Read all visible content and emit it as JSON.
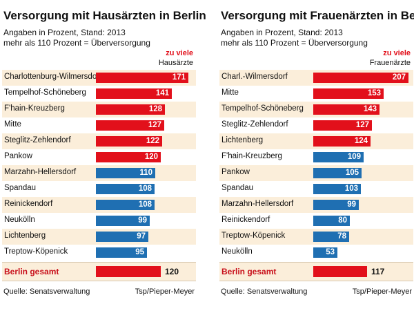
{
  "chart_data": [
    {
      "type": "bar",
      "orientation": "horizontal",
      "title": "Versorgung mit Hausärzten in Berlin",
      "subtitle_lines": [
        "Angaben in Prozent, Stand: 2013",
        "mehr als 110 Prozent = Überversorgung"
      ],
      "legend_label": "zu viele",
      "column_label": "Hausärzte",
      "threshold": 110,
      "xlim": [
        0,
        180
      ],
      "colors": {
        "over": "#e2101b",
        "under": "#1f6fb2",
        "total": "#e2101b"
      },
      "categories": [
        "Charlottenburg-Wilmersdorf",
        "Tempelhof-Schöneberg",
        "F'hain-Kreuzberg",
        "Mitte",
        "Steglitz-Zehlendorf",
        "Pankow",
        "Marzahn-Hellersdorf",
        "Spandau",
        "Reinickendorf",
        "Neukölln",
        "Lichtenberg",
        "Treptow-Köpenick"
      ],
      "values": [
        171,
        141,
        128,
        127,
        122,
        120,
        110,
        108,
        108,
        99,
        97,
        95
      ],
      "total_label": "Berlin gesamt",
      "total_value": 120,
      "source": "Quelle: Senatsverwaltung",
      "credit": "Tsp/Pieper-Meyer"
    },
    {
      "type": "bar",
      "orientation": "horizontal",
      "title": "Versorgung mit Frauenärzten in Berlin",
      "subtitle_lines": [
        "Angaben in Prozent, Stand: 2013",
        "mehr als 110 Prozent = Überversorgung"
      ],
      "legend_label": "zu viele",
      "column_label": "Frauenärzte",
      "threshold": 110,
      "xlim": [
        0,
        211
      ],
      "colors": {
        "over": "#e2101b",
        "under": "#1f6fb2",
        "total": "#e2101b"
      },
      "categories": [
        "Charl.-Wilmersdorf",
        "Mitte",
        "Tempelhof-Schöneberg",
        "Steglitz-Zehlendorf",
        "Lichtenberg",
        "F'hain-Kreuzberg",
        "Pankow",
        "Spandau",
        "Marzahn-Hellersdorf",
        "Reinickendorf",
        "Treptow-Köpenick",
        "Neukölln"
      ],
      "values": [
        207,
        153,
        143,
        127,
        124,
        109,
        105,
        103,
        99,
        80,
        78,
        53
      ],
      "total_label": "Berlin gesamt",
      "total_value": 117,
      "source": "Quelle: Senatsverwaltung",
      "credit": "Tsp/Pieper-Meyer"
    }
  ]
}
